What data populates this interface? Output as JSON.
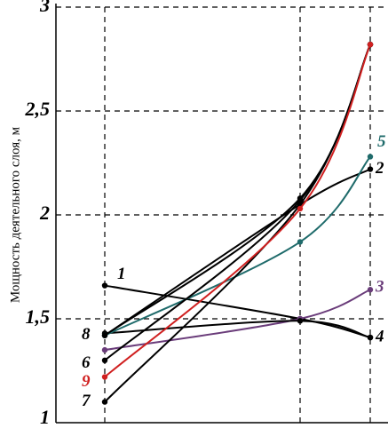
{
  "chart_data": {
    "type": "line",
    "y_label": "Мощность деятельного слоя, м",
    "categories": [
      null,
      null,
      null
    ],
    "ylim": [
      1,
      3
    ],
    "yticks": [
      1,
      {
        "value": 1.5,
        "label": "1,5"
      },
      2,
      {
        "value": 2.5,
        "label": "2,5"
      },
      3
    ],
    "grid": true,
    "series": [
      {
        "name": "1",
        "color": "#000000",
        "values": [
          1.66,
          1.5,
          1.41
        ]
      },
      {
        "name": "2",
        "color": "#000000",
        "values": [
          1.42,
          2.05,
          2.22
        ]
      },
      {
        "name": "3",
        "color": "#6a3c7a",
        "values": [
          1.35,
          1.5,
          1.64
        ]
      },
      {
        "name": "4",
        "color": "#000000",
        "values": [
          1.43,
          1.49,
          1.41
        ]
      },
      {
        "name": "5",
        "color": "#1f6b6b",
        "values": [
          1.42,
          1.87,
          2.28
        ]
      },
      {
        "name": "6",
        "color": "#000000",
        "values": [
          1.3,
          2.07,
          2.82
        ]
      },
      {
        "name": "7",
        "color": "#000000",
        "values": [
          1.1,
          2.05,
          2.82
        ]
      },
      {
        "name": "8",
        "color": "#000000",
        "values": [
          1.42,
          2.08,
          2.82
        ]
      },
      {
        "name": "9",
        "color": "#d02020",
        "values": [
          1.22,
          2.03,
          2.82
        ]
      }
    ]
  }
}
